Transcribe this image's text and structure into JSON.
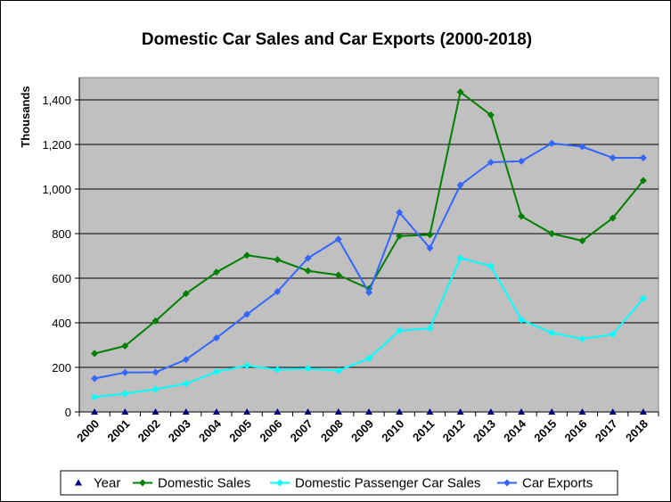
{
  "chart_data": {
    "type": "line",
    "title": "Domestic Car Sales and Car Exports (2000-2018)",
    "ylabel": "Thousands",
    "xlabel": "",
    "ylim": [
      0,
      1500
    ],
    "yticks": [
      0,
      200,
      400,
      600,
      800,
      1000,
      1200,
      1400
    ],
    "ytick_labels": [
      "0",
      "200",
      "400",
      "600",
      "800",
      "1,000",
      "1,200",
      "1,400"
    ],
    "categories": [
      "2000",
      "2001",
      "2002",
      "2003",
      "2004",
      "2005",
      "2006",
      "2007",
      "2008",
      "2009",
      "2010",
      "2011",
      "2012",
      "2013",
      "2014",
      "2015",
      "2016",
      "2017",
      "2018"
    ],
    "grid": true,
    "legend_position": "bottom",
    "plot_background": "#c0c0c0",
    "series": [
      {
        "name": "Year",
        "color": "#000080",
        "marker": "triangle",
        "line": false,
        "values": [
          0,
          0,
          0,
          0,
          0,
          0,
          0,
          0,
          0,
          0,
          0,
          0,
          0,
          0,
          0,
          0,
          0,
          0,
          0
        ]
      },
      {
        "name": "Domestic Sales",
        "color": "#008000",
        "marker": "diamond",
        "line": true,
        "values": [
          262,
          296,
          408,
          531,
          627,
          703,
          683,
          633,
          614,
          553,
          789,
          795,
          1435,
          1332,
          878,
          800,
          768,
          870,
          1038
        ]
      },
      {
        "name": "Domestic Passenger Car Sales",
        "color": "#00ffff",
        "marker": "diamond",
        "line": true,
        "values": [
          67,
          82,
          102,
          127,
          180,
          208,
          190,
          195,
          185,
          240,
          365,
          375,
          690,
          655,
          413,
          355,
          328,
          348,
          510
        ]
      },
      {
        "name": "Car Exports",
        "color": "#3366ff",
        "marker": "diamond",
        "line": true,
        "values": [
          150,
          177,
          178,
          235,
          332,
          438,
          540,
          690,
          775,
          536,
          895,
          735,
          1018,
          1120,
          1125,
          1205,
          1190,
          1140,
          1140
        ]
      }
    ]
  }
}
